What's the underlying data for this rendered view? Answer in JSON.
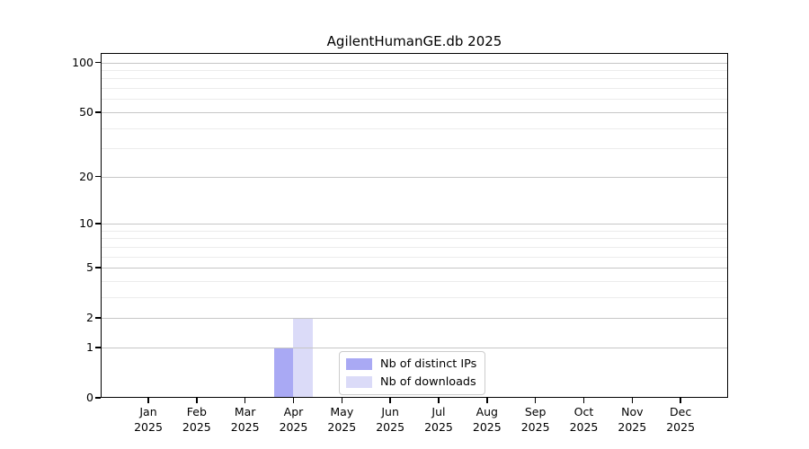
{
  "chart_data": {
    "type": "bar",
    "title": "AgilentHumanGE.db 2025",
    "x_categories": [
      "Jan",
      "Feb",
      "Mar",
      "Apr",
      "May",
      "Jun",
      "Jul",
      "Aug",
      "Sep",
      "Oct",
      "Nov",
      "Dec"
    ],
    "x_sub_label": "2025",
    "series": [
      {
        "name": "Nb of distinct IPs",
        "color": "#a9a9f4",
        "values": [
          0,
          0,
          0,
          1,
          0,
          0,
          0,
          0,
          0,
          0,
          0,
          0
        ]
      },
      {
        "name": "Nb of downloads",
        "color": "#dbdbf8",
        "values": [
          0,
          0,
          0,
          2,
          0,
          0,
          0,
          0,
          0,
          0,
          0,
          0
        ]
      }
    ],
    "y_axis": {
      "scale": "log1p",
      "major_ticks": [
        0,
        1,
        2,
        5,
        10,
        20,
        50,
        100
      ],
      "minor_ticks": [
        3,
        4,
        6,
        7,
        8,
        9,
        30,
        40,
        60,
        70,
        80,
        90
      ],
      "top_value": 113
    },
    "legend": {
      "position": "bottom-center"
    },
    "colors": {
      "grid_major": "#c6c6c6",
      "grid_minor": "#ececec",
      "axis": "#000000",
      "text": "#000000",
      "background": "#ffffff"
    }
  }
}
